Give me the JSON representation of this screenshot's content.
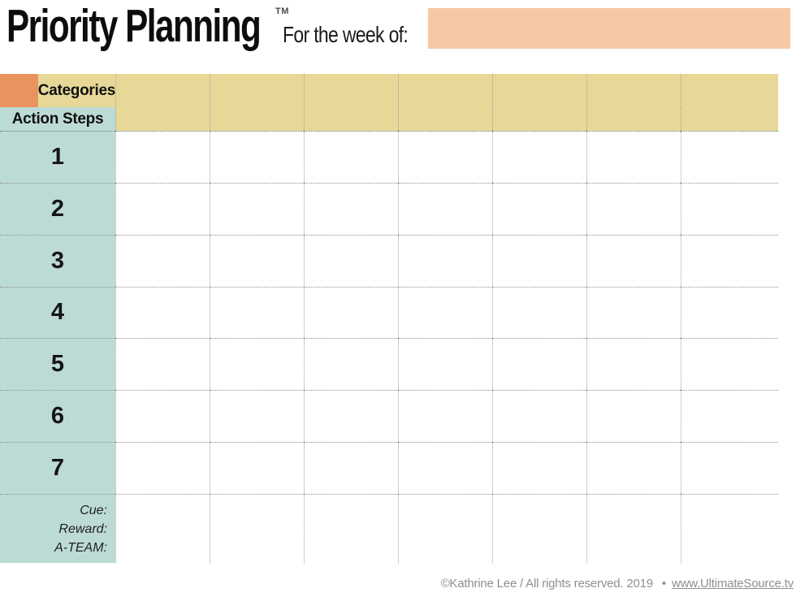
{
  "header": {
    "title": "Priority Planning",
    "trademark": "TM",
    "week_label": "For the week of:",
    "week_value": ""
  },
  "table": {
    "categories_label": "Categories",
    "action_steps_label": "Action Steps",
    "num_day_columns": 7,
    "row_numbers": [
      "1",
      "2",
      "3",
      "4",
      "5",
      "6",
      "7"
    ],
    "footer_labels": [
      "Cue:",
      "Reward:",
      "A-TEAM:"
    ]
  },
  "colors": {
    "corner_orange": "#E9945F",
    "header_tan": "#E8D898",
    "row_teal": "#BCDBD4",
    "week_field_peach": "#F6C9A6"
  },
  "footer": {
    "copyright": "©Kathrine Lee / All rights reserved. 2019",
    "bullet": "•",
    "link": "www.UltimateSource.tv"
  }
}
